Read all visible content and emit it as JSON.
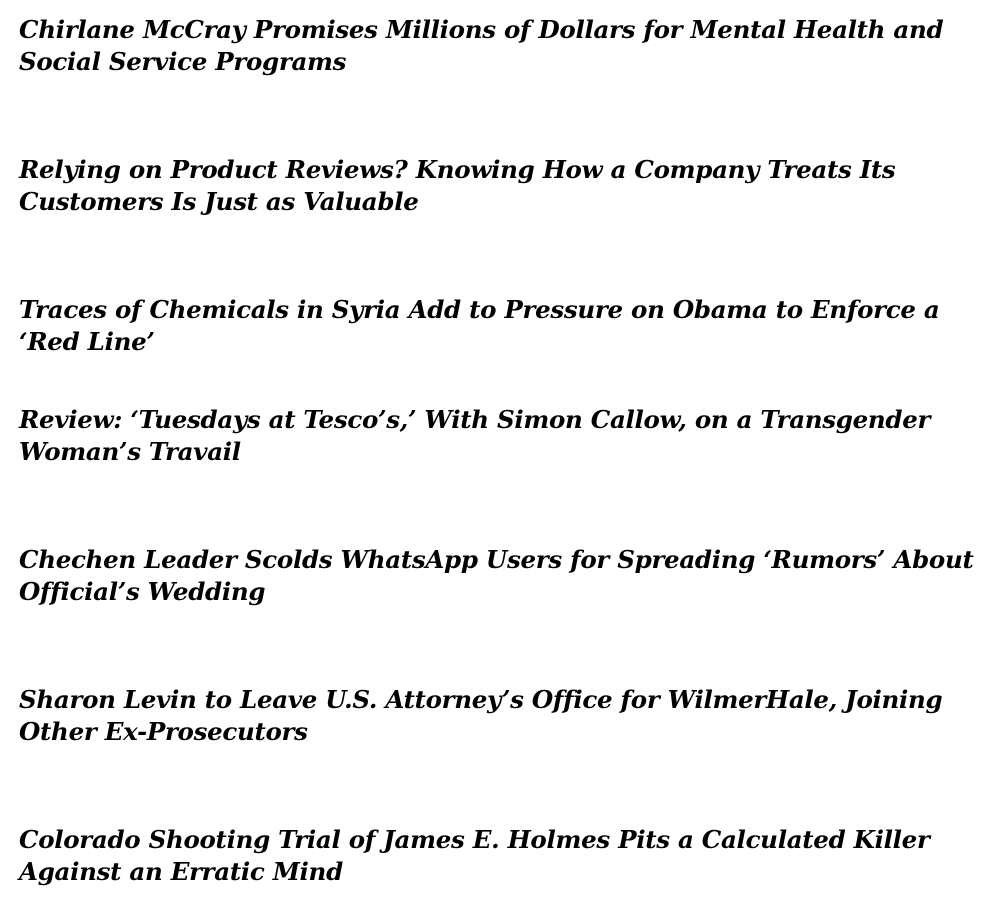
{
  "headlines": [
    "Chirlane McCray Promises Millions of Dollars for Mental Health and Social Service Programs",
    "Relying on Product Reviews? Knowing How a Company Treats Its Customers Is Just as Valuable",
    "Traces of Chemicals in Syria Add to Pressure on Obama to Enforce a ‘Red Line’",
    "Review: ‘Tuesdays at Tesco’s,’ With Simon Callow, on a Transgender Woman’s Travail",
    "Chechen Leader Scolds WhatsApp Users for Spreading ‘Rumors’ About Official’s Wedding",
    "Sharon Levin to Leave U.S. Attorney’s Office for WilmerHale, Joining Other Ex-Prosecutors",
    "Colorado Shooting Trial of James E. Holmes Pits a Calculated Killer Against an Erratic Mind"
  ]
}
